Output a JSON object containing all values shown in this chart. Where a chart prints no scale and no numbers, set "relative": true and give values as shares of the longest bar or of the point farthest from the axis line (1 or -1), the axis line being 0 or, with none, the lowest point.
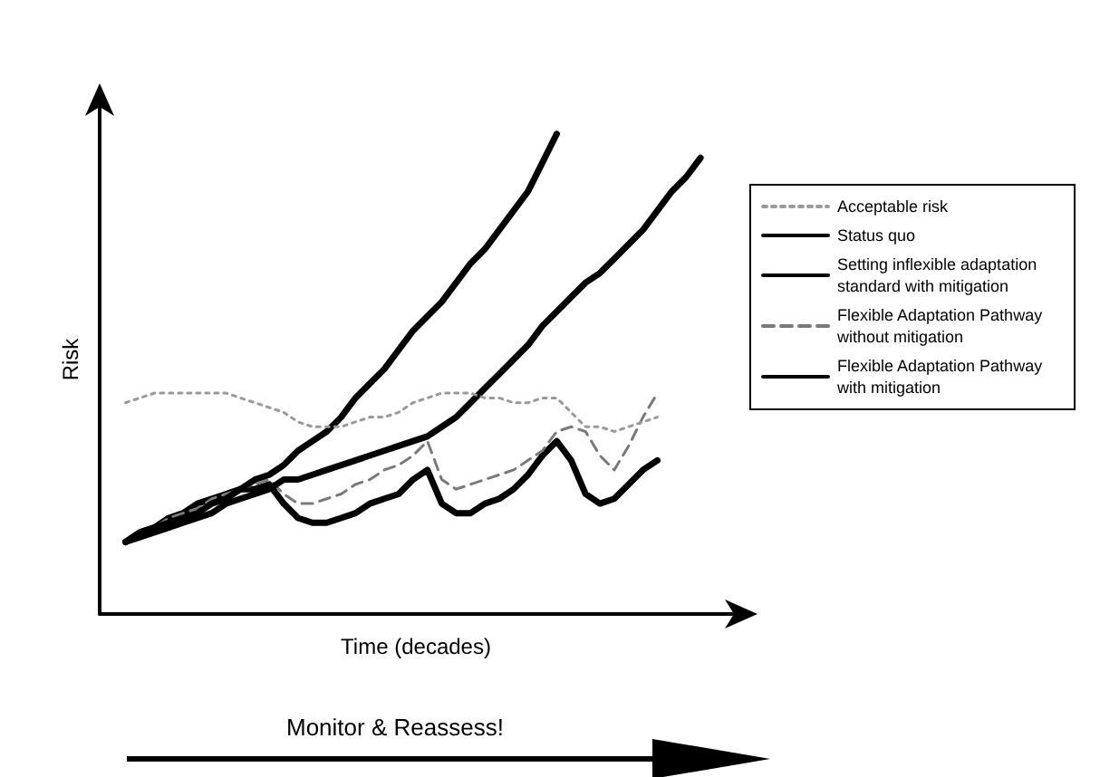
{
  "chart_data": {
    "type": "line",
    "relative": true,
    "xlabel": "Time (decades)",
    "ylabel": "Risk",
    "legend": "top right",
    "grid": false,
    "marker": "none",
    "categories": [
      null,
      null,
      null,
      null,
      null,
      null,
      null,
      null,
      null,
      null,
      null,
      null,
      null,
      null,
      null,
      null,
      null,
      null,
      null,
      null,
      null,
      null,
      null,
      null,
      null,
      null,
      null,
      null,
      null,
      null,
      null,
      null,
      null,
      null,
      null,
      null,
      null,
      null,
      null,
      null,
      null
    ],
    "series": [
      {
        "name": "Acceptable risk",
        "color": "#9a9a9a",
        "line_style": "dotted",
        "values": [
          0.44,
          0.45,
          0.46,
          0.46,
          0.46,
          0.46,
          0.46,
          0.46,
          0.45,
          0.44,
          0.43,
          0.42,
          0.4,
          0.39,
          0.39,
          0.39,
          0.4,
          0.41,
          0.41,
          0.42,
          0.44,
          0.45,
          0.46,
          0.46,
          0.46,
          0.45,
          0.45,
          0.44,
          0.44,
          0.45,
          0.45,
          0.42,
          0.39,
          0.39,
          0.38,
          0.39,
          0.4,
          0.41,
          null,
          null,
          null
        ]
      },
      {
        "name": "Status quo",
        "color": "#000000",
        "line_style": "solid",
        "values": [
          0.15,
          0.17,
          0.18,
          0.19,
          0.2,
          0.21,
          0.23,
          0.24,
          0.26,
          0.28,
          0.29,
          0.31,
          0.34,
          0.36,
          0.38,
          0.41,
          0.45,
          0.48,
          0.51,
          0.55,
          0.59,
          0.62,
          0.65,
          0.69,
          0.73,
          0.76,
          0.8,
          0.84,
          0.88,
          0.94,
          1.0,
          null,
          null,
          null,
          null,
          null,
          null,
          null,
          null,
          null,
          null
        ]
      },
      {
        "name": "Setting inflexible adaptation standard with mitigation",
        "color": "#000000",
        "line_style": "solid",
        "values": [
          0.15,
          0.16,
          0.17,
          0.18,
          0.19,
          0.2,
          0.21,
          0.23,
          0.24,
          0.25,
          0.26,
          0.28,
          0.28,
          0.29,
          0.3,
          0.31,
          0.32,
          0.33,
          0.34,
          0.35,
          0.36,
          0.37,
          0.39,
          0.41,
          0.44,
          0.47,
          0.5,
          0.53,
          0.56,
          0.6,
          0.63,
          0.66,
          0.69,
          0.71,
          0.74,
          0.77,
          0.8,
          0.84,
          0.88,
          0.91,
          0.95
        ]
      },
      {
        "name": "Flexible Adaptation Pathway without mitigation",
        "color": "#7a7a7a",
        "line_style": "dashed",
        "values": [
          0.15,
          0.17,
          0.18,
          0.2,
          0.21,
          0.22,
          0.24,
          0.25,
          0.26,
          0.27,
          0.28,
          0.25,
          0.23,
          0.23,
          0.24,
          0.25,
          0.27,
          0.28,
          0.3,
          0.31,
          0.33,
          0.36,
          0.28,
          0.26,
          0.27,
          0.28,
          0.29,
          0.3,
          0.32,
          0.34,
          0.38,
          0.39,
          0.38,
          0.33,
          0.3,
          0.35,
          0.41,
          0.46,
          null,
          null,
          null
        ]
      },
      {
        "name": "Flexible Adaptation Pathway with mitigation",
        "color": "#000000",
        "line_style": "solid",
        "values": [
          0.15,
          0.17,
          0.18,
          0.2,
          0.21,
          0.23,
          0.24,
          0.25,
          0.26,
          0.26,
          0.27,
          0.23,
          0.2,
          0.19,
          0.19,
          0.2,
          0.21,
          0.23,
          0.24,
          0.25,
          0.28,
          0.3,
          0.23,
          0.21,
          0.21,
          0.23,
          0.24,
          0.26,
          0.29,
          0.33,
          0.36,
          0.32,
          0.25,
          0.23,
          0.24,
          0.27,
          0.3,
          0.32,
          null,
          null,
          null
        ]
      }
    ],
    "annotations": [
      "Monitor & Reassess!"
    ]
  }
}
